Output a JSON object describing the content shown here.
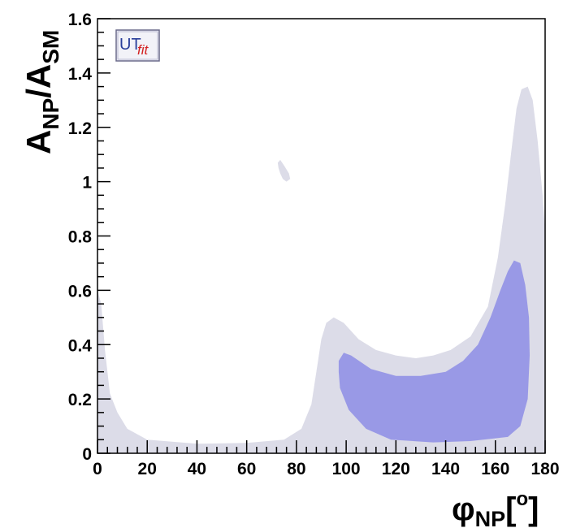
{
  "chart_data": {
    "type": "area",
    "xlabel": "φNP[o]",
    "ylabel": "ANP/ASM",
    "xlim": [
      0,
      180
    ],
    "ylim": [
      0,
      1.6
    ],
    "x_ticks": [
      "0",
      "20",
      "40",
      "60",
      "80",
      "100",
      "120",
      "140",
      "160",
      "180"
    ],
    "y_ticks": [
      "0",
      "0.2",
      "0.4",
      "0.6",
      "0.8",
      "1",
      "1.2",
      "1.4",
      "1.6"
    ],
    "grid": false,
    "colors": {
      "outer_region": "#dcdce8",
      "inner_region": "#9999e6",
      "frame": "#000000"
    },
    "logo": {
      "text_main": "UT",
      "text_sub": "fit"
    },
    "regions": [
      {
        "level": "outer",
        "points": [
          [
            0,
            0.6
          ],
          [
            1.5,
            0.55
          ],
          [
            3,
            0.38
          ],
          [
            5,
            0.22
          ],
          [
            8,
            0.15
          ],
          [
            12,
            0.09
          ],
          [
            20,
            0.05
          ],
          [
            40,
            0.035
          ],
          [
            60,
            0.038
          ],
          [
            75,
            0.05
          ],
          [
            82,
            0.09
          ],
          [
            86,
            0.18
          ],
          [
            88,
            0.3
          ],
          [
            90,
            0.42
          ],
          [
            92,
            0.48
          ],
          [
            95,
            0.5
          ],
          [
            99,
            0.48
          ],
          [
            105,
            0.42
          ],
          [
            112,
            0.38
          ],
          [
            120,
            0.36
          ],
          [
            128,
            0.35
          ],
          [
            135,
            0.36
          ],
          [
            142,
            0.38
          ],
          [
            150,
            0.43
          ],
          [
            157,
            0.54
          ],
          [
            161,
            0.72
          ],
          [
            164,
            0.92
          ],
          [
            166.5,
            1.12
          ],
          [
            168.5,
            1.27
          ],
          [
            170.5,
            1.34
          ],
          [
            173,
            1.35
          ],
          [
            175,
            1.3
          ],
          [
            177,
            1.15
          ],
          [
            179,
            0.95
          ],
          [
            180,
            0.82
          ],
          [
            180,
            0
          ],
          [
            0,
            0
          ]
        ]
      },
      {
        "level": "outer",
        "points": [
          [
            72.5,
            1.07
          ],
          [
            73.5,
            1.08
          ],
          [
            75,
            1.06
          ],
          [
            77,
            1.03
          ],
          [
            77.5,
            1.01
          ],
          [
            76,
            1.0
          ],
          [
            74.5,
            1.01
          ],
          [
            73.5,
            1.03
          ],
          [
            72.8,
            1.05
          ]
        ]
      },
      {
        "level": "inner",
        "points": [
          [
            97,
            0.34
          ],
          [
            99,
            0.37
          ],
          [
            102,
            0.36
          ],
          [
            110,
            0.31
          ],
          [
            120,
            0.285
          ],
          [
            130,
            0.285
          ],
          [
            140,
            0.3
          ],
          [
            147,
            0.34
          ],
          [
            153,
            0.4
          ],
          [
            158,
            0.5
          ],
          [
            162,
            0.6
          ],
          [
            165,
            0.67
          ],
          [
            167.5,
            0.71
          ],
          [
            170,
            0.7
          ],
          [
            172,
            0.62
          ],
          [
            173.5,
            0.5
          ],
          [
            173.8,
            0.36
          ],
          [
            173,
            0.2
          ],
          [
            170,
            0.1
          ],
          [
            165,
            0.06
          ],
          [
            150,
            0.045
          ],
          [
            135,
            0.04
          ],
          [
            118,
            0.05
          ],
          [
            108,
            0.09
          ],
          [
            101,
            0.16
          ],
          [
            97.5,
            0.24
          ],
          [
            97,
            0.3
          ]
        ]
      }
    ]
  }
}
